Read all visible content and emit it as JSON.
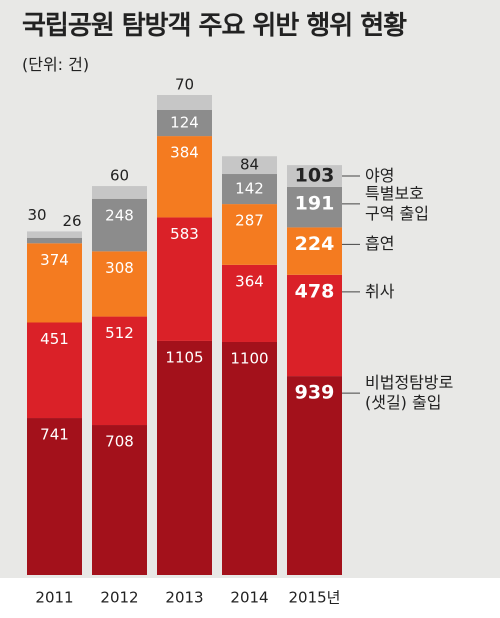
{
  "chart_data": {
    "type": "stacked-bar",
    "title": "국립공원 탐방객 주요 위반 행위 현황",
    "subtitle": "(단위: 건)",
    "categories": [
      "2011",
      "2012",
      "2013",
      "2014",
      "2015년"
    ],
    "series": [
      {
        "name": "비법정탐방로\n(샛길) 출입",
        "color": "#a3111b",
        "values": [
          741,
          708,
          1105,
          1100,
          939
        ]
      },
      {
        "name": "취사",
        "color": "#da2128",
        "values": [
          451,
          512,
          583,
          364,
          478
        ]
      },
      {
        "name": "흡연",
        "color": "#f47b20",
        "values": [
          374,
          308,
          384,
          287,
          224
        ]
      },
      {
        "name": "특별보호\n구역 출입",
        "color": "#8c8c8c",
        "values": [
          26,
          248,
          124,
          142,
          191
        ]
      },
      {
        "name": "야영",
        "color": "#c6c6c6",
        "values": [
          30,
          60,
          70,
          84,
          103
        ]
      }
    ]
  }
}
